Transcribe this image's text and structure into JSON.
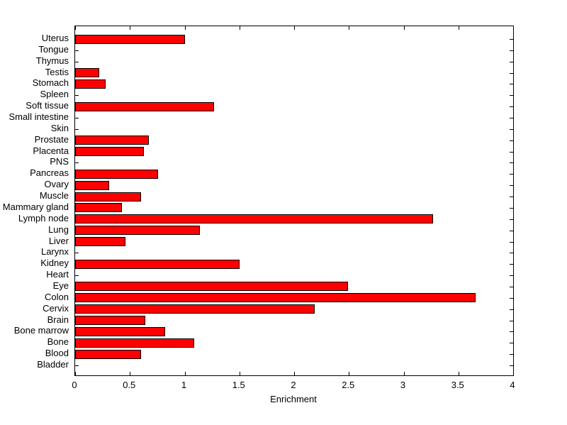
{
  "chart_data": {
    "type": "bar",
    "orientation": "horizontal",
    "title": "",
    "xlabel": "Enrichment",
    "ylabel": "",
    "xlim": [
      0,
      4
    ],
    "xtick_labels": [
      "0",
      "0.5",
      "1",
      "1.5",
      "2",
      "2.5",
      "3",
      "3.5",
      "4"
    ],
    "xtick_values": [
      0,
      0.5,
      1,
      1.5,
      2,
      2.5,
      3,
      3.5,
      4
    ],
    "grid": false,
    "legend": null,
    "bar_color": "#ff0000",
    "bar_edge_color": "#000000",
    "categories": [
      "Uterus",
      "Tongue",
      "Thymus",
      "Testis",
      "Stomach",
      "Spleen",
      "Soft tissue",
      "Small intestine",
      "Skin",
      "Prostate",
      "Placenta",
      "PNS",
      "Pancreas",
      "Ovary",
      "Muscle",
      "Mammary gland",
      "Lymph node",
      "Lung",
      "Liver",
      "Larynx",
      "Kidney",
      "Heart",
      "Eye",
      "Colon",
      "Cervix",
      "Brain",
      "Bone marrow",
      "Bone",
      "Blood",
      "Bladder"
    ],
    "values": [
      1.0,
      0,
      0,
      0.22,
      0.28,
      0,
      1.27,
      0,
      0,
      0.67,
      0.63,
      0,
      0.76,
      0.31,
      0.6,
      0.43,
      3.27,
      1.14,
      0.46,
      0,
      1.5,
      0,
      2.49,
      3.66,
      2.19,
      0.64,
      0.82,
      1.09,
      0.6,
      0
    ],
    "category_order_note": "top-to-bottom as displayed"
  }
}
